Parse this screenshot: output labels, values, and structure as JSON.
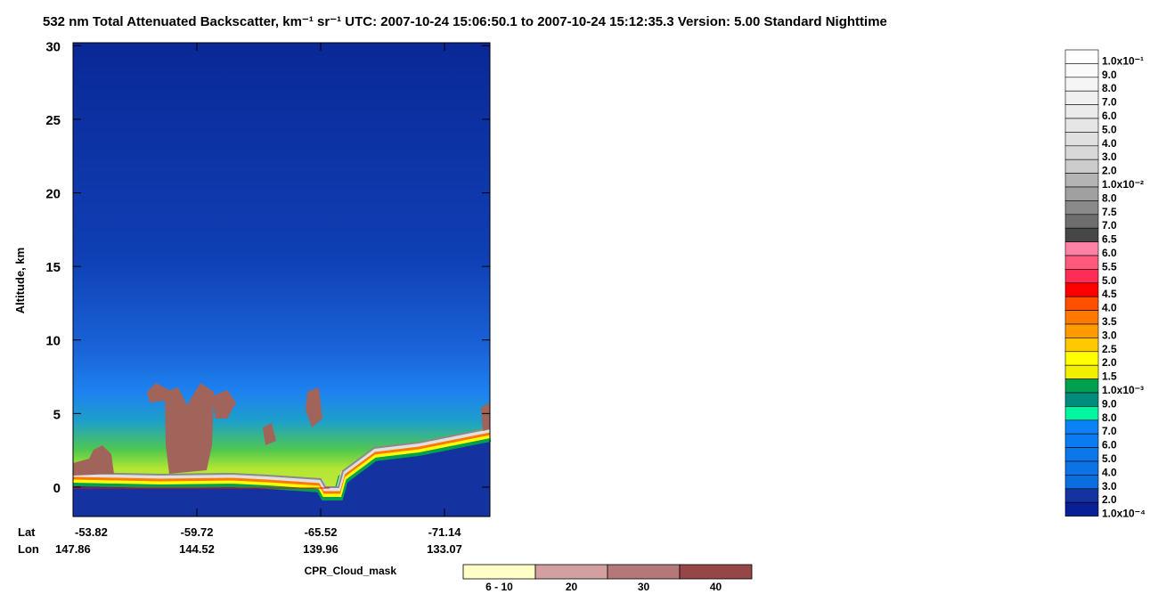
{
  "chart_data": {
    "type": "heatmap",
    "title": "532 nm Total Attenuated Backscatter, km⁻¹ sr⁻¹    UTC:  2007-10-24 15:06:50.1  to  2007-10-24 15:12:35.3    Version: 5.00  Standard  Nighttime",
    "y_label": "Altitude, km",
    "ylim": [
      -2,
      30.2
    ],
    "yticks": [
      0,
      5,
      10,
      15,
      20,
      25,
      30
    ],
    "x_row_labels": [
      "Lat",
      "Lon"
    ],
    "x_lat": [
      "-53.82",
      "-59.72",
      "-65.52",
      "-71.14"
    ],
    "x_lon": [
      "147.86",
      "144.52",
      "139.96",
      "133.07"
    ],
    "colorbar": {
      "labels": [
        "1.0x10⁻¹",
        "9.0",
        "8.0",
        "7.0",
        "6.0",
        "5.0",
        "4.0",
        "3.0",
        "2.0",
        "1.0x10⁻²",
        "8.0",
        "7.5",
        "7.0",
        "6.5",
        "6.0",
        "5.5",
        "5.0",
        "4.5",
        "4.0",
        "3.5",
        "3.0",
        "2.5",
        "2.0",
        "1.5",
        "1.0x10⁻³",
        "9.0",
        "8.0",
        "7.0",
        "6.0",
        "5.0",
        "4.0",
        "3.0",
        "2.0",
        "1.0x10⁻⁴"
      ],
      "colors": [
        "#ffffff",
        "#fafafa",
        "#f5f5f5",
        "#f0f0f0",
        "#ebebeb",
        "#e6e6e6",
        "#e0e0e0",
        "#d8d8d8",
        "#cccccc",
        "#b4b4b4",
        "#a0a0a0",
        "#8a8a8a",
        "#6e6e6e",
        "#464646",
        "#ff82a5",
        "#ff5a7d",
        "#ff2d55",
        "#ff0000",
        "#ff5000",
        "#ff7800",
        "#ff9b00",
        "#ffc800",
        "#ffff00",
        "#f0f000",
        "#00a050",
        "#008c7d",
        "#00f5a0",
        "#0a82f5",
        "#0a7cf0",
        "#0a78eb",
        "#0a74e6",
        "#0a6ee0",
        "#1432a0",
        "#0a1e96"
      ]
    },
    "cpr": {
      "title": "CPR_Cloud_mask",
      "labels": [
        "6 - 10",
        "20",
        "30",
        "40"
      ],
      "colors": [
        "#ffffc8",
        "#d2a0a0",
        "#b47878",
        "#964646"
      ]
    }
  }
}
